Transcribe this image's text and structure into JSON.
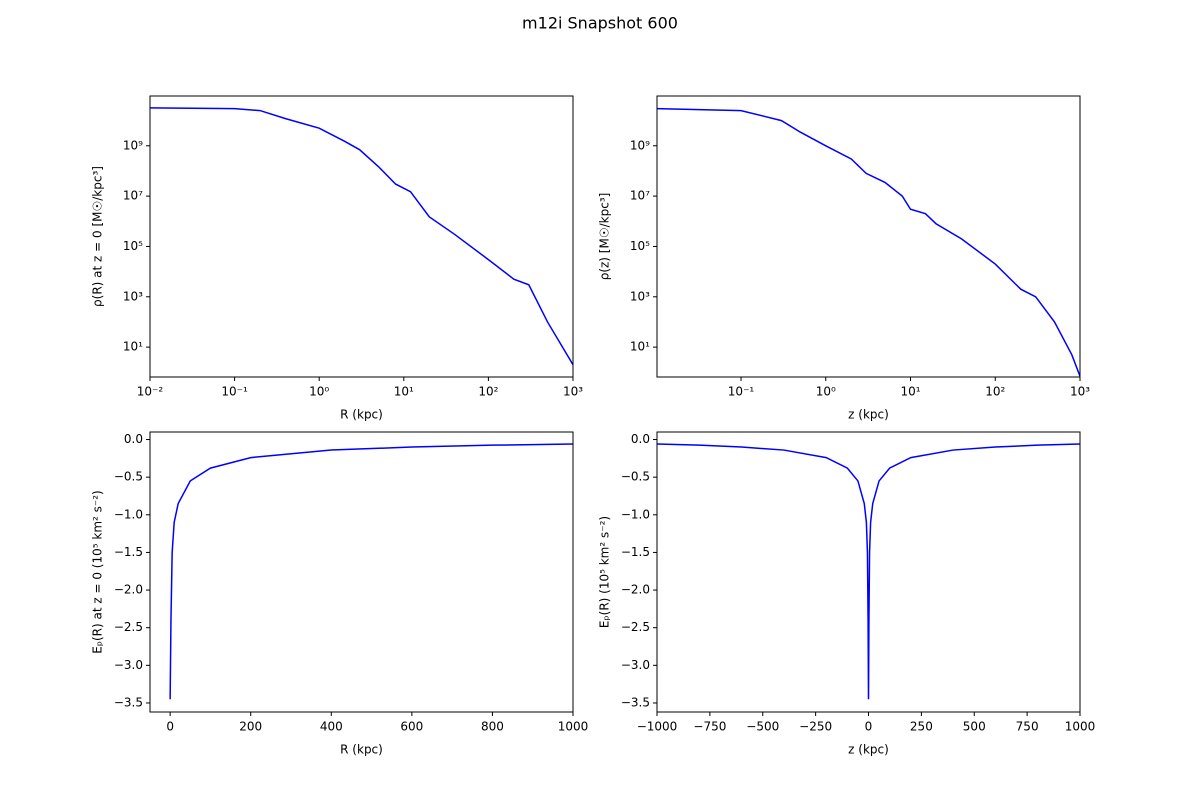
{
  "title": "m12i Snapshot 600",
  "chart_data": [
    {
      "type": "line",
      "xlabel": "R (kpc)",
      "ylabel": "ρ(R) at z = 0 [M☉/kpc³]",
      "color": "#0000ff",
      "xscale": "log",
      "yscale": "log",
      "xlim": [
        0.01,
        1000
      ],
      "ylim": [
        0.65,
        95000000000
      ],
      "xticks": [
        {
          "value": 0.01,
          "label": "10⁻²"
        },
        {
          "value": 0.1,
          "label": "10⁻¹"
        },
        {
          "value": 1,
          "label": "10⁰"
        },
        {
          "value": 10,
          "label": "10¹"
        },
        {
          "value": 100,
          "label": "10²"
        },
        {
          "value": 1000,
          "label": "10³"
        }
      ],
      "yticks": [
        {
          "value": 10,
          "label": "10¹"
        },
        {
          "value": 1000,
          "label": "10³"
        },
        {
          "value": 100000,
          "label": "10⁵"
        },
        {
          "value": 10000000,
          "label": "10⁷"
        },
        {
          "value": 1000000000,
          "label": "10⁹"
        }
      ],
      "x": [
        0.01,
        0.1,
        0.2,
        0.4,
        1,
        2,
        3,
        5,
        8,
        12,
        20,
        40,
        100,
        200,
        300,
        500,
        1000
      ],
      "values": [
        32000000000,
        30000000000,
        25000000000,
        12000000000,
        5000000000,
        1500000000,
        700000000,
        150000000,
        30000000,
        15000000,
        1500000,
        300000,
        30000,
        5000,
        3000,
        100,
        2
      ]
    },
    {
      "type": "line",
      "xlabel": "z (kpc)",
      "ylabel": "ρ(z) [M☉/kpc³]",
      "color": "#0000ff",
      "xscale": "log",
      "yscale": "log",
      "xlim": [
        0.0102,
        1000
      ],
      "ylim": [
        0.65,
        95000000000
      ],
      "xticks": [
        {
          "value": 0.1,
          "label": "10⁻¹"
        },
        {
          "value": 1,
          "label": "10⁰"
        },
        {
          "value": 10,
          "label": "10¹"
        },
        {
          "value": 100,
          "label": "10²"
        },
        {
          "value": 1000,
          "label": "10³"
        }
      ],
      "yticks": [
        {
          "value": 10,
          "label": "10¹"
        },
        {
          "value": 1000,
          "label": "10³"
        },
        {
          "value": 100000,
          "label": "10⁵"
        },
        {
          "value": 10000000,
          "label": "10⁷"
        },
        {
          "value": 1000000000,
          "label": "10⁹"
        }
      ],
      "x": [
        0.0102,
        0.1,
        0.3,
        0.5,
        1,
        2,
        3,
        5,
        8,
        10,
        15,
        20,
        40,
        100,
        200,
        300,
        500,
        800,
        1000
      ],
      "values": [
        30000000000,
        25000000000,
        10000000000,
        3500000000,
        1000000000,
        300000000,
        80000000,
        35000000,
        10000000,
        3000000,
        2000000,
        800000,
        200000,
        20000,
        2000,
        1000,
        100,
        5,
        0.7
      ]
    },
    {
      "type": "line",
      "xlabel": "R (kpc)",
      "ylabel": "Eₚ(R) at z = 0 (10⁵ km² s⁻²)",
      "color": "#0000ff",
      "xscale": "linear",
      "yscale": "linear",
      "xlim": [
        -50,
        1000
      ],
      "ylim": [
        -3.62,
        0.1
      ],
      "xticks": [
        0,
        200,
        400,
        600,
        800,
        1000
      ],
      "yticks": [
        {
          "value": 0,
          "label": "0.0"
        },
        {
          "value": -0.5,
          "label": "−0.5"
        },
        {
          "value": -1,
          "label": "−1.0"
        },
        {
          "value": -1.5,
          "label": "−1.5"
        },
        {
          "value": -2,
          "label": "−2.0"
        },
        {
          "value": -2.5,
          "label": "−2.5"
        },
        {
          "value": -3,
          "label": "−3.0"
        },
        {
          "value": -3.5,
          "label": "−3.5"
        }
      ],
      "x": [
        0,
        2,
        5,
        10,
        20,
        50,
        100,
        200,
        400,
        600,
        800,
        1000
      ],
      "values": [
        -3.45,
        -2.4,
        -1.5,
        -1.1,
        -0.85,
        -0.55,
        -0.38,
        -0.24,
        -0.14,
        -0.1,
        -0.075,
        -0.06
      ]
    },
    {
      "type": "line",
      "xlabel": "z (kpc)",
      "ylabel": "Eₚ(R) (10⁵ km² s⁻²)",
      "color": "#0000ff",
      "xscale": "linear",
      "yscale": "linear",
      "xlim": [
        -1000,
        1000
      ],
      "ylim": [
        -3.62,
        0.1
      ],
      "xticks": [
        {
          "value": -1000,
          "label": "−1000"
        },
        {
          "value": -750,
          "label": "−750"
        },
        {
          "value": -500,
          "label": "−500"
        },
        {
          "value": -250,
          "label": "−250"
        },
        0,
        250,
        500,
        750,
        1000
      ],
      "yticks": [
        {
          "value": 0,
          "label": "0.0"
        },
        {
          "value": -0.5,
          "label": "−0.5"
        },
        {
          "value": -1,
          "label": "−1.0"
        },
        {
          "value": -1.5,
          "label": "−1.5"
        },
        {
          "value": -2,
          "label": "−2.0"
        },
        {
          "value": -2.5,
          "label": "−2.5"
        },
        {
          "value": -3,
          "label": "−3.0"
        },
        {
          "value": -3.5,
          "label": "−3.5"
        }
      ],
      "x": [
        -1000,
        -800,
        -600,
        -400,
        -200,
        -100,
        -50,
        -20,
        -10,
        -5,
        -2,
        0,
        2,
        5,
        10,
        20,
        50,
        100,
        200,
        400,
        600,
        800,
        1000
      ],
      "values": [
        -0.06,
        -0.075,
        -0.1,
        -0.14,
        -0.24,
        -0.38,
        -0.55,
        -0.85,
        -1.1,
        -1.5,
        -2.4,
        -3.45,
        -2.4,
        -1.5,
        -1.1,
        -0.85,
        -0.55,
        -0.38,
        -0.24,
        -0.14,
        -0.1,
        -0.075,
        -0.06
      ]
    }
  ]
}
